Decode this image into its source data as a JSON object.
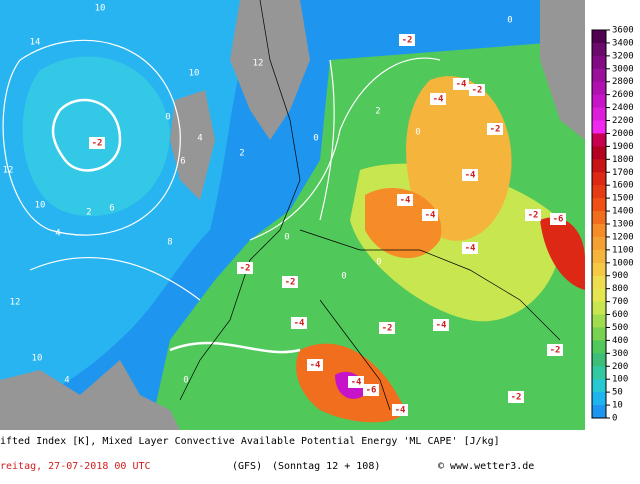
{
  "title": "ifted Index [K], Mixed Layer Convective Available Potential Energy 'ML CAPE' [J/kg]",
  "date": "reitag, 27-07-2018  00 UTC",
  "model": "(GFS)",
  "run": "(Sonntag 12 + 108)",
  "credit": "© www.wetter3.de",
  "colorbar": {
    "levels": [
      3600,
      3400,
      3200,
      3000,
      2800,
      2600,
      2400,
      2200,
      2000,
      1900,
      1800,
      1700,
      1600,
      1500,
      1400,
      1300,
      1200,
      1100,
      1000,
      900,
      800,
      700,
      600,
      500,
      400,
      300,
      200,
      100,
      50,
      10,
      0
    ],
    "colors": [
      "#500050",
      "#6a0a6a",
      "#820a82",
      "#9a109a",
      "#b010b0",
      "#c814c8",
      "#dc1edc",
      "#f028f0",
      "#c80050",
      "#b40020",
      "#c81414",
      "#dc2814",
      "#e63c14",
      "#f05014",
      "#f06e1e",
      "#f58c28",
      "#f5a032",
      "#f5b43c",
      "#f5c846",
      "#f0dc50",
      "#e6e650",
      "#c8e650",
      "#a0dc50",
      "#78d250",
      "#50c85a",
      "#3cbe78",
      "#32c8a0",
      "#28c8d2",
      "#1eb4f0",
      "#1e96f0"
    ]
  },
  "contour_labels": [
    -2,
    -2,
    -2,
    -4,
    -4,
    -2,
    -4,
    -4,
    -4,
    -2,
    -6,
    -4,
    -2,
    -2,
    -4,
    -2,
    -4,
    -4,
    -4,
    -6,
    -4,
    -2,
    -2,
    14,
    10,
    12,
    10,
    6,
    4,
    2,
    12,
    10,
    4,
    8,
    6,
    4,
    10,
    12,
    0,
    0,
    0,
    0,
    0,
    2,
    0,
    0,
    2,
    0
  ]
}
